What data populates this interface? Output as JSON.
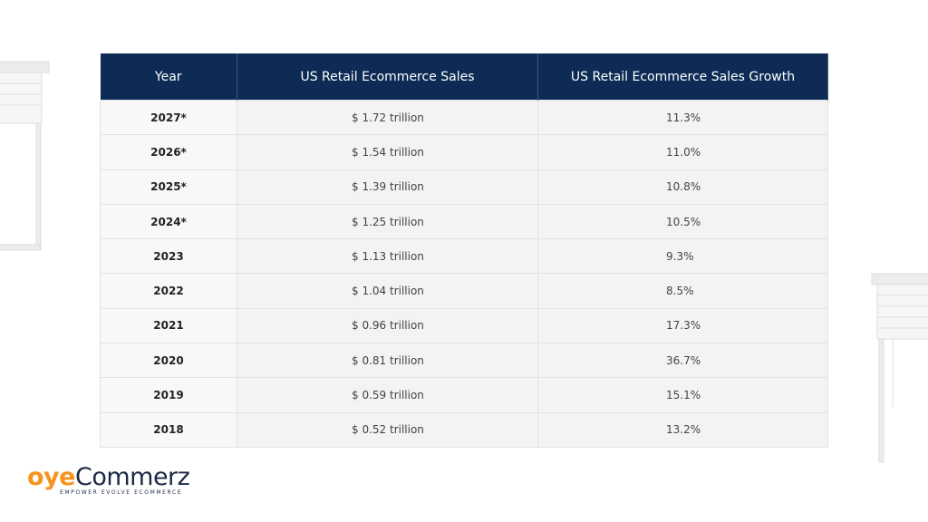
{
  "table": {
    "header": [
      "Year",
      "US Retail Ecommerce Sales",
      "US Retail Ecommerce Sales Growth"
    ],
    "rows": [
      [
        "2027*",
        "$ 1.72 trillion",
        "11.3%"
      ],
      [
        "2026*",
        "$ 1.54 trillion",
        "11.0%"
      ],
      [
        "2025*",
        "$ 1.39 trillion",
        "10.8%"
      ],
      [
        "2024*",
        "$ 1.25 trillion",
        "10.5%"
      ],
      [
        "2023",
        "$ 1.13 trillion",
        "9.3%"
      ],
      [
        "2022",
        "$ 1.04 trillion",
        "8.5%"
      ],
      [
        "2021",
        "$ 0.96 trillion",
        "17.3%"
      ],
      [
        "2020",
        "$ 0.81 trillion",
        "36.7%"
      ],
      [
        "2019",
        "$ 0.59 trillion",
        "15.1%"
      ],
      [
        "2018",
        "$ 0.52 trillion",
        "13.2%"
      ]
    ]
  },
  "logo": {
    "accent": "oye",
    "brand": "Commerz",
    "tagline": "EMPOWER EVOLVE ECOMMERCE"
  }
}
